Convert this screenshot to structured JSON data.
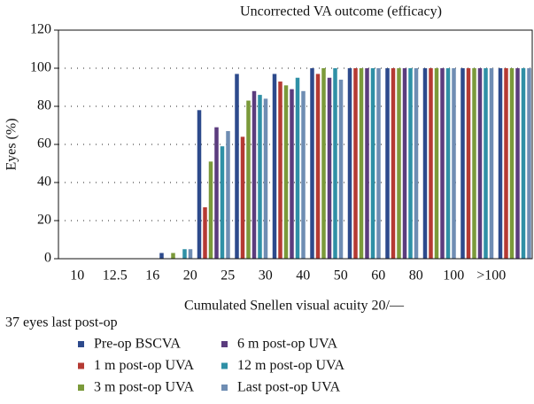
{
  "chart_data": {
    "type": "bar",
    "title": "Uncorrected VA outcome (efficacy)",
    "x_label": "Cumulated Snellen visual acuity 20/—",
    "y_label": "Eyes (%)",
    "legend_title": "37 eyes last post-op",
    "categories": [
      "10",
      "12.5",
      "16",
      "20",
      "25",
      "30",
      "40",
      "50",
      "60",
      "80",
      "100",
      ">100"
    ],
    "series": [
      {
        "name": "Pre-op BSCVA",
        "color": "#2d4a8c",
        "values": [
          0,
          0,
          3,
          78,
          97,
          97,
          100,
          100,
          100,
          100,
          100,
          100
        ]
      },
      {
        "name": "1 m post-op UVA",
        "color": "#b53a33",
        "values": [
          0,
          0,
          0,
          27,
          64,
          93,
          97,
          100,
          100,
          100,
          100,
          100
        ]
      },
      {
        "name": "3 m post-op UVA",
        "color": "#7b9a3a",
        "values": [
          0,
          0,
          3,
          51,
          83,
          91,
          100,
          100,
          100,
          100,
          100,
          100
        ]
      },
      {
        "name": "6 m post-op UVA",
        "color": "#5b3c7e",
        "values": [
          0,
          0,
          0,
          69,
          88,
          89,
          95,
          100,
          100,
          100,
          100,
          100
        ]
      },
      {
        "name": "12 m post-op UVA",
        "color": "#2f90a6",
        "values": [
          0,
          0,
          5,
          59,
          86,
          95,
          100,
          100,
          100,
          100,
          100,
          100
        ]
      },
      {
        "name": "Last post-op UVA",
        "color": "#6f8db3",
        "values": [
          0,
          0,
          5,
          67,
          84,
          88,
          94,
          100,
          100,
          100,
          100,
          100
        ]
      }
    ],
    "ylim": [
      0,
      120
    ],
    "yticks": [
      0,
      20,
      40,
      60,
      80,
      100,
      120
    ],
    "grid": "dotted"
  }
}
